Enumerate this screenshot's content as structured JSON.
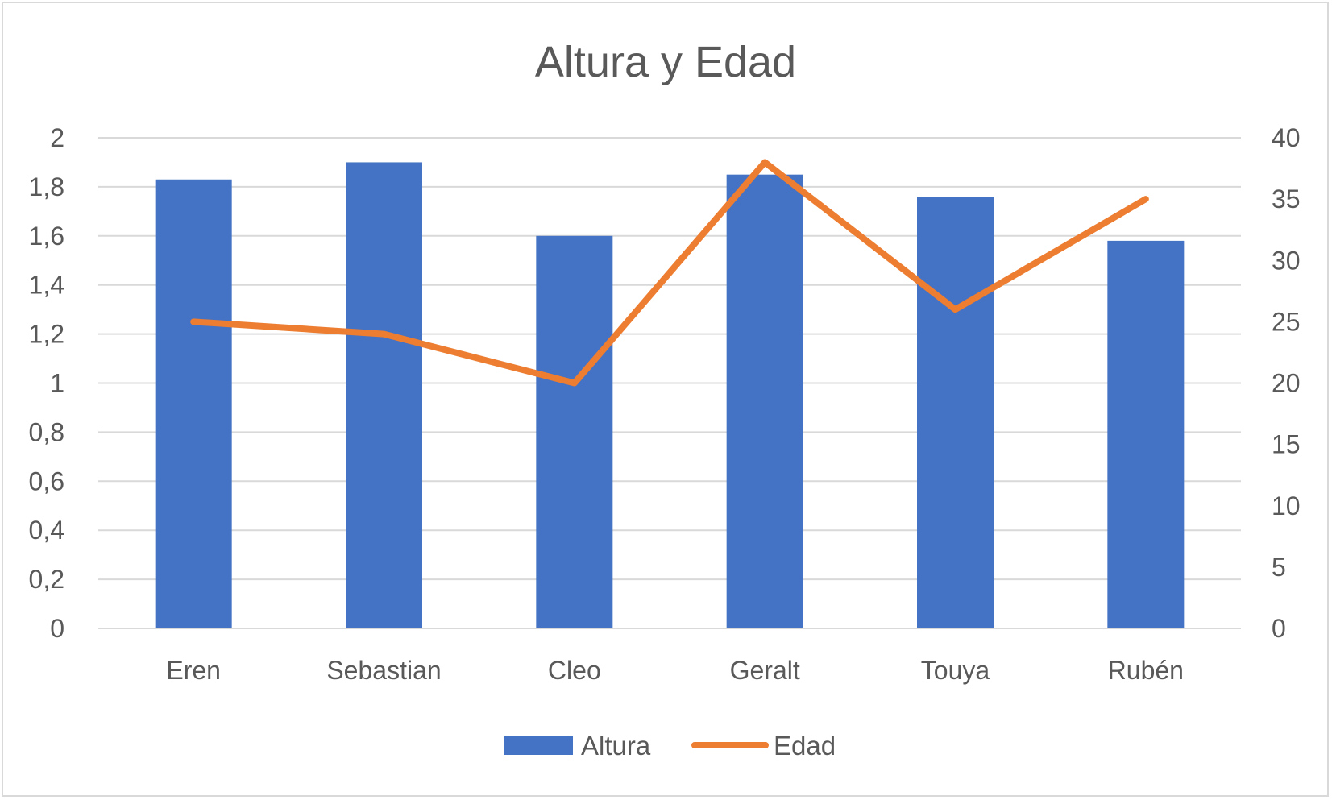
{
  "chart_data": {
    "type": "bar",
    "title": "Altura y Edad",
    "categories": [
      "Eren",
      "Sebastian",
      "Cleo",
      "Geralt",
      "Touya",
      "Rubén"
    ],
    "series": [
      {
        "name": "Altura",
        "type": "bar",
        "axis": "left",
        "color": "#4472C4",
        "values": [
          1.83,
          1.9,
          1.6,
          1.85,
          1.76,
          1.58
        ]
      },
      {
        "name": "Edad",
        "type": "line",
        "axis": "right",
        "color": "#ED7D31",
        "values": [
          25,
          24,
          20,
          38,
          26,
          35
        ]
      }
    ],
    "y_left": {
      "range": [
        0,
        2
      ],
      "ticks": [
        "0",
        "0,2",
        "0,4",
        "0,6",
        "0,8",
        "1",
        "1,2",
        "1,4",
        "1,6",
        "1,8",
        "2"
      ]
    },
    "y_right": {
      "range": [
        0,
        40
      ],
      "ticks": [
        "0",
        "5",
        "10",
        "15",
        "20",
        "25",
        "30",
        "35",
        "40"
      ]
    },
    "grid": true,
    "legend_position": "bottom"
  }
}
